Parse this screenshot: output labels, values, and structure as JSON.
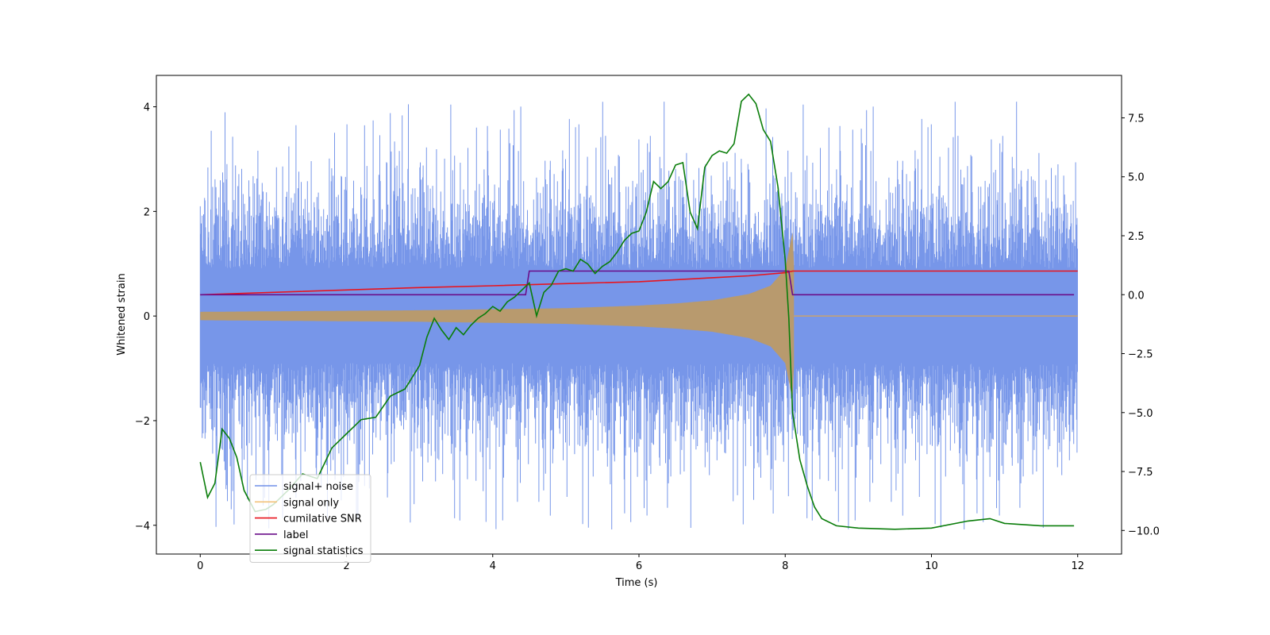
{
  "chart_data": {
    "type": "line",
    "title": "",
    "xlabel": "Time (s)",
    "ylabel": "Whitened strain",
    "ylabel_right": "",
    "xlim": [
      -0.6,
      12.6
    ],
    "ylim": [
      -4.55,
      4.6
    ],
    "ylim_right": [
      -11.0,
      9.3
    ],
    "x_ticks": [
      0,
      2,
      4,
      6,
      8,
      10,
      12
    ],
    "y_ticks": [
      -4,
      -2,
      0,
      2,
      4
    ],
    "y_right_ticks": [
      -10.0,
      -7.5,
      -5.0,
      -2.5,
      0.0,
      2.5,
      5.0,
      7.5
    ],
    "legend": {
      "position": "lower-left",
      "entries": [
        {
          "name": "signal+ noise",
          "color": "#7090e8"
        },
        {
          "name": "signal only",
          "color": "#f2c27a"
        },
        {
          "name": "cumilative SNR",
          "color": "#e8141e"
        },
        {
          "name": "label",
          "color": "#6a0e8a"
        },
        {
          "name": "signal statistics",
          "color": "#0a7d0a"
        }
      ]
    },
    "series": [
      {
        "name": "signal+ noise",
        "axis": "left",
        "color": "#7090e8",
        "description": "whitened noisy strain, approx. zero-mean, std ~1, spikes to about ±4",
        "x_range": [
          0,
          12
        ],
        "envelope_positive": 2.5,
        "envelope_negative": -2.5,
        "max": 4.1,
        "min": -4.1
      },
      {
        "name": "signal only",
        "axis": "left",
        "color": "#f2c27a",
        "x_range": [
          0,
          12
        ],
        "amplitude_envelope": {
          "x": [
            0,
            1,
            2,
            3,
            4,
            5,
            6,
            6.5,
            7,
            7.5,
            7.8,
            8.0,
            8.1,
            8.15,
            12
          ],
          "y": [
            0.08,
            0.09,
            0.1,
            0.11,
            0.13,
            0.15,
            0.2,
            0.24,
            0.3,
            0.42,
            0.58,
            0.9,
            1.6,
            0,
            0
          ]
        }
      },
      {
        "name": "cumilative SNR",
        "axis": "right",
        "color": "#e8141e",
        "x": [
          0,
          1,
          2,
          3,
          4,
          5,
          6,
          7,
          7.5,
          8.0,
          8.1,
          12
        ],
        "y": [
          0.0,
          0.1,
          0.2,
          0.3,
          0.38,
          0.47,
          0.55,
          0.72,
          0.8,
          0.93,
          1.0,
          1.0
        ]
      },
      {
        "name": "label",
        "axis": "right",
        "color": "#6a0e8a",
        "x": [
          0,
          4.45,
          4.5,
          8.05,
          8.1,
          11.95
        ],
        "y": [
          0.0,
          0.0,
          1.0,
          1.0,
          0.0,
          0.0
        ]
      },
      {
        "name": "signal statistics",
        "axis": "right",
        "color": "#0a7d0a",
        "x": [
          0.0,
          0.1,
          0.2,
          0.3,
          0.4,
          0.5,
          0.6,
          0.75,
          0.9,
          1.0,
          1.2,
          1.4,
          1.6,
          1.8,
          2.0,
          2.2,
          2.4,
          2.6,
          2.8,
          3.0,
          3.1,
          3.2,
          3.3,
          3.4,
          3.5,
          3.6,
          3.7,
          3.8,
          3.9,
          4.0,
          4.1,
          4.2,
          4.3,
          4.4,
          4.5,
          4.6,
          4.7,
          4.8,
          4.9,
          5.0,
          5.1,
          5.2,
          5.3,
          5.4,
          5.5,
          5.6,
          5.7,
          5.8,
          5.9,
          6.0,
          6.1,
          6.2,
          6.3,
          6.4,
          6.5,
          6.6,
          6.7,
          6.8,
          6.9,
          7.0,
          7.1,
          7.2,
          7.3,
          7.4,
          7.5,
          7.6,
          7.7,
          7.8,
          7.9,
          8.0,
          8.05,
          8.1,
          8.2,
          8.3,
          8.4,
          8.5,
          8.7,
          9.0,
          9.5,
          10.0,
          10.5,
          10.8,
          11.0,
          11.5,
          11.95
        ],
        "y": [
          -7.1,
          -8.6,
          -8.0,
          -5.7,
          -6.1,
          -6.9,
          -8.3,
          -9.2,
          -9.1,
          -8.9,
          -8.3,
          -7.6,
          -7.8,
          -6.5,
          -5.9,
          -5.3,
          -5.2,
          -4.3,
          -4.0,
          -3.0,
          -1.8,
          -1.0,
          -1.5,
          -1.9,
          -1.4,
          -1.7,
          -1.3,
          -1.0,
          -0.8,
          -0.5,
          -0.7,
          -0.3,
          -0.1,
          0.2,
          0.5,
          -0.9,
          0.1,
          0.4,
          1.0,
          1.1,
          1.0,
          1.5,
          1.3,
          0.9,
          1.2,
          1.4,
          1.8,
          2.3,
          2.6,
          2.7,
          3.5,
          4.8,
          4.5,
          4.8,
          5.5,
          5.6,
          3.5,
          2.8,
          5.4,
          5.9,
          6.1,
          6.0,
          6.4,
          8.2,
          8.5,
          8.1,
          7.0,
          6.5,
          4.6,
          1.5,
          -1.0,
          -5.0,
          -7.0,
          -8.1,
          -9.0,
          -9.5,
          -9.8,
          -9.9,
          -9.95,
          -9.9,
          -9.6,
          -9.5,
          -9.7,
          -9.8,
          -9.8
        ]
      }
    ]
  }
}
